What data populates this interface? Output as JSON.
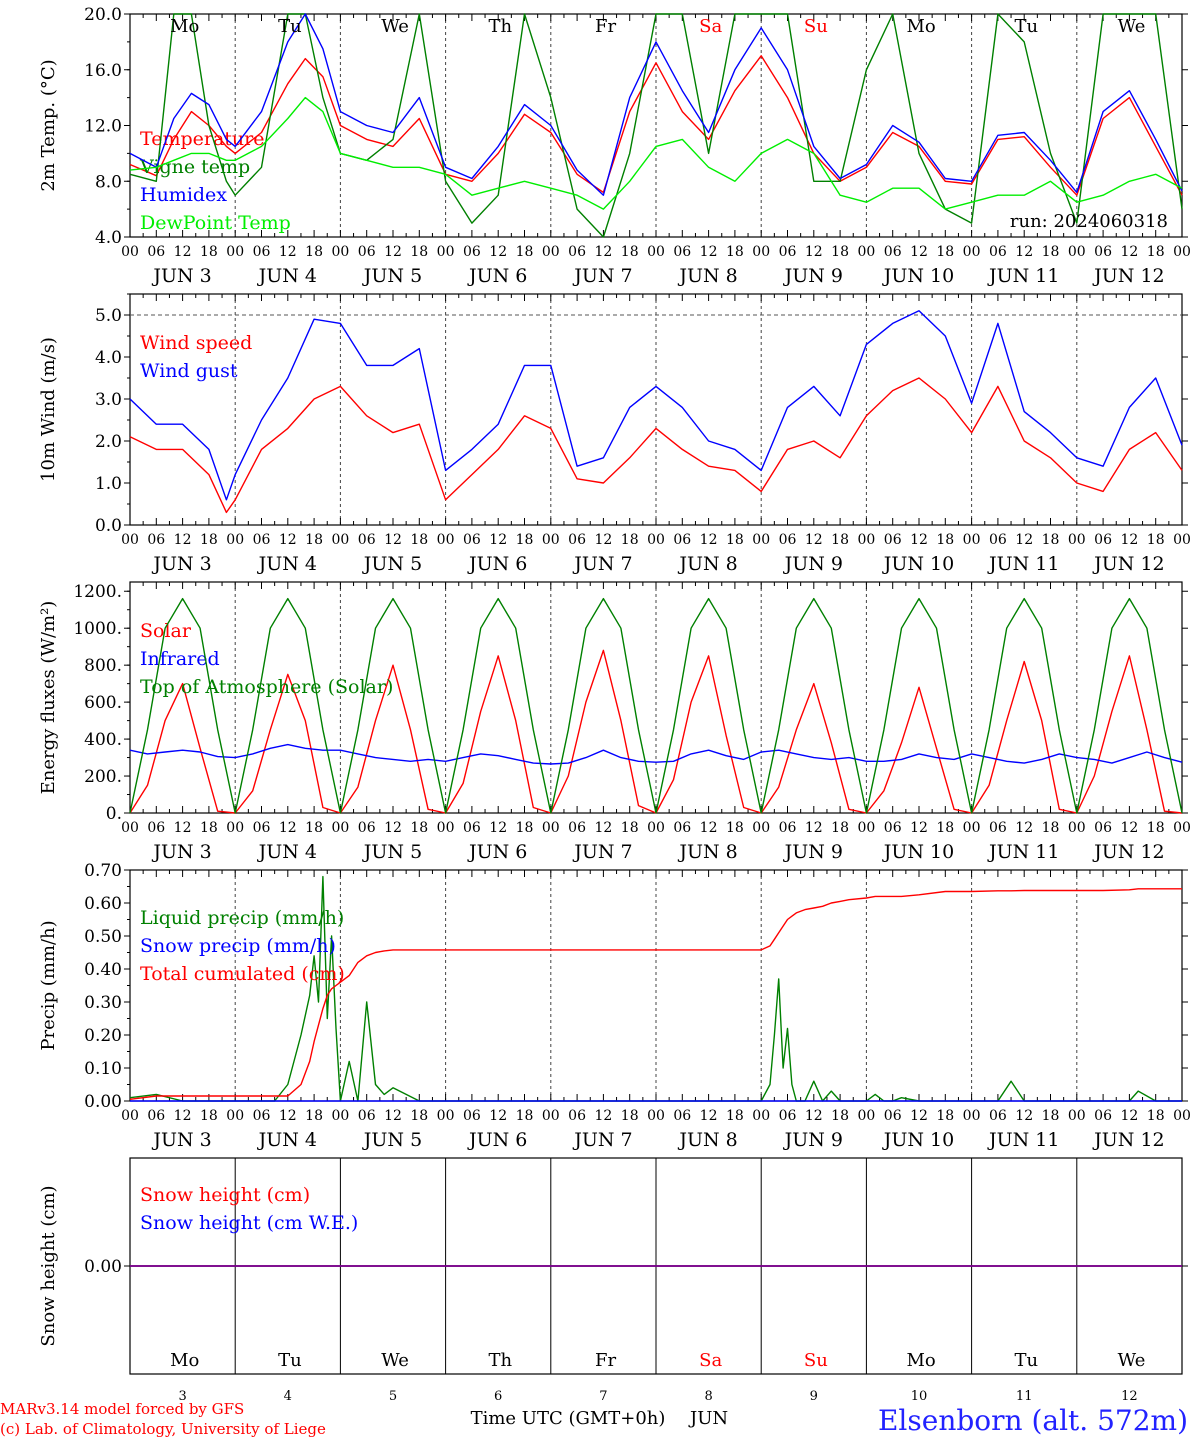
{
  "station": "Elsenborn (alt. 572m)",
  "credits": [
    "MARv3.14 model forced by GFS",
    "(c) Lab. of Climatology, University of Liege"
  ],
  "run_label": "run: 2024060318",
  "time_axis_label": "Time UTC (GMT+0h)",
  "month_label": "JUN",
  "days": [
    {
      "date": "JUN  3",
      "dow": "Mo",
      "num": "3",
      "weekend": false
    },
    {
      "date": "JUN  4",
      "dow": "Tu",
      "num": "4",
      "weekend": false
    },
    {
      "date": "JUN  5",
      "dow": "We",
      "num": "5",
      "weekend": false
    },
    {
      "date": "JUN  6",
      "dow": "Th",
      "num": "6",
      "weekend": false
    },
    {
      "date": "JUN  7",
      "dow": "Fr",
      "num": "7",
      "weekend": false
    },
    {
      "date": "JUN  8",
      "dow": "Sa",
      "num": "8",
      "weekend": true
    },
    {
      "date": "JUN  9",
      "dow": "Su",
      "num": "9",
      "weekend": true
    },
    {
      "date": "JUN 10",
      "dow": "Mo",
      "num": "10",
      "weekend": false
    },
    {
      "date": "JUN 11",
      "dow": "Tu",
      "num": "11",
      "weekend": false
    },
    {
      "date": "JUN 12",
      "dow": "We",
      "num": "12",
      "weekend": false
    }
  ],
  "hour_ticks": [
    "00",
    "06",
    "12",
    "18"
  ],
  "colors": {
    "red": "#ff0000",
    "green": "#008000",
    "blue": "#0000ff",
    "light_green": "#00ee00",
    "purple": "#800080",
    "station_blue": "#2222ff"
  },
  "chart_data": [
    {
      "type": "line",
      "ylabel": "2m Temp. (°C)",
      "ylim": [
        4.0,
        20.0
      ],
      "yticks": [
        "4.0",
        "8.0",
        "12.0",
        "16.0",
        "20.0"
      ],
      "x_hours": [
        0,
        6,
        10,
        14,
        18,
        22,
        24,
        30,
        36,
        40,
        44,
        48,
        54,
        60,
        66,
        72,
        78,
        84,
        90,
        96,
        102,
        108,
        114,
        120,
        126,
        132,
        138,
        144,
        150,
        156,
        162,
        168,
        174,
        180,
        186,
        192,
        198,
        204,
        210,
        216,
        222,
        228,
        234,
        240
      ],
      "series": [
        {
          "name": "Temperature",
          "color": "red",
          "values": [
            9.2,
            8.4,
            11.0,
            13.0,
            12.0,
            10.5,
            10.0,
            11.5,
            15.0,
            16.8,
            15.5,
            12.0,
            11.0,
            10.5,
            12.5,
            8.5,
            8.0,
            10.0,
            12.8,
            11.5,
            8.5,
            7.2,
            13.0,
            16.5,
            13.0,
            11.0,
            14.5,
            17.0,
            14.0,
            10.0,
            8.0,
            9.0,
            11.5,
            10.5,
            8.0,
            7.8,
            11.0,
            11.2,
            9.0,
            7.0,
            12.5,
            14.0,
            10.5,
            7.0
          ]
        },
        {
          "name": "Vigne temp",
          "color": "green",
          "values": [
            8.5,
            8.0,
            20.0,
            20.0,
            12.0,
            8.0,
            7.0,
            9.0,
            20.0,
            20.0,
            14.0,
            10.0,
            9.5,
            11.0,
            20.0,
            8.0,
            5.0,
            7.0,
            20.0,
            14.0,
            6.0,
            4.0,
            10.0,
            20.0,
            20.0,
            10.0,
            20.0,
            20.0,
            20.0,
            8.0,
            8.0,
            16.0,
            20.0,
            10.0,
            6.0,
            5.0,
            20.0,
            18.0,
            10.0,
            5.0,
            20.0,
            20.0,
            20.0,
            6.0
          ]
        },
        {
          "name": "Humidex",
          "color": "blue",
          "values": [
            10.0,
            9.0,
            12.5,
            14.3,
            13.5,
            11.0,
            10.5,
            13.0,
            18.0,
            20.0,
            17.5,
            13.0,
            12.0,
            11.5,
            14.0,
            9.0,
            8.2,
            10.5,
            13.5,
            12.0,
            8.8,
            7.0,
            14.0,
            18.0,
            14.5,
            11.5,
            16.0,
            19.0,
            16.0,
            10.5,
            8.2,
            9.2,
            12.0,
            10.8,
            8.2,
            8.0,
            11.3,
            11.5,
            9.5,
            7.2,
            13.0,
            14.5,
            11.0,
            7.3
          ]
        },
        {
          "name": "DewPoint Temp",
          "color": "light_green",
          "values": [
            8.8,
            9.0,
            9.5,
            10.0,
            10.0,
            9.5,
            9.5,
            10.5,
            12.5,
            14.0,
            13.0,
            10.0,
            9.5,
            9.0,
            9.0,
            8.5,
            7.0,
            7.5,
            8.0,
            7.5,
            7.0,
            6.0,
            8.0,
            10.5,
            11.0,
            9.0,
            8.0,
            10.0,
            11.0,
            10.0,
            7.0,
            6.5,
            7.5,
            7.5,
            6.0,
            6.5,
            7.0,
            7.0,
            8.0,
            6.5,
            7.0,
            8.0,
            8.5,
            7.5
          ]
        }
      ]
    },
    {
      "type": "line",
      "ylabel": "10m Wind (m/s)",
      "ylim": [
        0.0,
        5.5
      ],
      "yticks": [
        "0.0",
        "1.0",
        "2.0",
        "3.0",
        "4.0",
        "5.0"
      ],
      "x_hours": [
        0,
        6,
        12,
        18,
        22,
        24,
        30,
        36,
        42,
        48,
        54,
        60,
        66,
        72,
        78,
        84,
        90,
        96,
        102,
        108,
        114,
        120,
        126,
        132,
        138,
        144,
        150,
        156,
        162,
        168,
        174,
        180,
        186,
        192,
        198,
        204,
        210,
        216,
        222,
        228,
        234,
        240
      ],
      "series": [
        {
          "name": "Wind speed",
          "color": "red",
          "values": [
            2.1,
            1.8,
            1.8,
            1.2,
            0.3,
            0.6,
            1.8,
            2.3,
            3.0,
            3.3,
            2.6,
            2.2,
            2.4,
            0.6,
            1.2,
            1.8,
            2.6,
            2.3,
            1.1,
            1.0,
            1.6,
            2.3,
            1.8,
            1.4,
            1.3,
            0.8,
            1.8,
            2.0,
            1.6,
            2.6,
            3.2,
            3.5,
            3.0,
            2.2,
            3.3,
            2.0,
            1.6,
            1.0,
            0.8,
            1.8,
            2.2,
            1.3
          ]
        },
        {
          "name": "Wind gust",
          "color": "blue",
          "values": [
            3.0,
            2.4,
            2.4,
            1.8,
            0.6,
            1.2,
            2.5,
            3.5,
            4.9,
            4.8,
            3.8,
            3.8,
            4.2,
            1.3,
            1.8,
            2.4,
            3.8,
            3.8,
            1.4,
            1.6,
            2.8,
            3.3,
            2.8,
            2.0,
            1.8,
            1.3,
            2.8,
            3.3,
            2.6,
            4.3,
            4.8,
            5.1,
            4.5,
            2.9,
            4.8,
            2.7,
            2.2,
            1.6,
            1.4,
            2.8,
            3.5,
            1.9
          ]
        }
      ]
    },
    {
      "type": "line",
      "ylabel": "Energy fluxes (W/m²)",
      "ylim": [
        0,
        1250
      ],
      "yticks": [
        "0.",
        "200.",
        "400.",
        "600.",
        "800.",
        "1000.",
        "1200."
      ],
      "x_hours": [
        0,
        4,
        8,
        12,
        16,
        20,
        24,
        28,
        32,
        36,
        40,
        44,
        48,
        52,
        56,
        60,
        64,
        68,
        72,
        76,
        80,
        84,
        88,
        92,
        96,
        100,
        104,
        108,
        112,
        116,
        120,
        124,
        128,
        132,
        136,
        140,
        144,
        148,
        152,
        156,
        160,
        164,
        168,
        172,
        176,
        180,
        184,
        188,
        192,
        196,
        200,
        204,
        208,
        212,
        216,
        220,
        224,
        228,
        232,
        236,
        240
      ],
      "series": [
        {
          "name": "Solar",
          "color": "red",
          "values": [
            0,
            150,
            500,
            700,
            350,
            10,
            0,
            120,
            450,
            750,
            500,
            30,
            0,
            140,
            500,
            800,
            450,
            20,
            0,
            160,
            550,
            850,
            500,
            30,
            0,
            200,
            600,
            880,
            500,
            40,
            0,
            180,
            600,
            850,
            420,
            30,
            0,
            140,
            450,
            700,
            380,
            20,
            0,
            120,
            380,
            680,
            350,
            20,
            0,
            150,
            500,
            820,
            500,
            20,
            0,
            200,
            550,
            850,
            450,
            10,
            0
          ]
        },
        {
          "name": "Infrared",
          "color": "blue",
          "values": [
            340,
            320,
            330,
            340,
            330,
            305,
            300,
            320,
            350,
            370,
            350,
            340,
            340,
            320,
            300,
            290,
            280,
            290,
            280,
            300,
            320,
            310,
            290,
            270,
            265,
            270,
            300,
            340,
            300,
            280,
            275,
            280,
            320,
            340,
            310,
            290,
            330,
            340,
            320,
            300,
            290,
            300,
            280,
            280,
            290,
            320,
            300,
            290,
            320,
            300,
            280,
            270,
            290,
            320,
            300,
            290,
            270,
            300,
            330,
            300,
            275
          ]
        },
        {
          "name": "Top of Atmosphere (Solar)",
          "color": "green",
          "values": [
            0,
            450,
            1000,
            1160,
            1000,
            450,
            0,
            450,
            1000,
            1160,
            1000,
            450,
            0,
            450,
            1000,
            1160,
            1000,
            450,
            0,
            450,
            1000,
            1160,
            1000,
            450,
            0,
            450,
            1000,
            1160,
            1000,
            450,
            0,
            450,
            1000,
            1160,
            1000,
            450,
            0,
            450,
            1000,
            1160,
            1000,
            450,
            0,
            450,
            1000,
            1160,
            1000,
            450,
            0,
            450,
            1000,
            1160,
            1000,
            450,
            0,
            450,
            1000,
            1160,
            1000,
            450,
            0
          ]
        }
      ]
    },
    {
      "type": "line",
      "ylabel": "Precip (mm/h)",
      "ylim": [
        0.0,
        0.7
      ],
      "yticks": [
        "0.00",
        "0.10",
        "0.20",
        "0.30",
        "0.40",
        "0.50",
        "0.60",
        "0.70"
      ],
      "x_hours": [
        0,
        6,
        12,
        18,
        24,
        30,
        33,
        36,
        39,
        41,
        42,
        43,
        44,
        45,
        46,
        47,
        48,
        50,
        52,
        54,
        56,
        58,
        60,
        66,
        72,
        96,
        120,
        144,
        146,
        147,
        148,
        149,
        150,
        151,
        152,
        154,
        156,
        158,
        160,
        162,
        164,
        168,
        170,
        172,
        174,
        176,
        180,
        186,
        192,
        198,
        201,
        204,
        210,
        216,
        222,
        228,
        230,
        234,
        240
      ],
      "series": [
        {
          "name": "Liquid precip (mm/h)",
          "color": "green",
          "values": [
            0.01,
            0.02,
            0.0,
            0.0,
            0.0,
            0.0,
            0.0,
            0.05,
            0.2,
            0.32,
            0.44,
            0.3,
            0.68,
            0.25,
            0.5,
            0.22,
            0.0,
            0.12,
            0.0,
            0.3,
            0.05,
            0.02,
            0.04,
            0.0,
            0.0,
            0.0,
            0.0,
            0.0,
            0.05,
            0.2,
            0.37,
            0.1,
            0.22,
            0.05,
            0.0,
            0.0,
            0.06,
            0.0,
            0.03,
            0.0,
            0.0,
            0.0,
            0.02,
            0.0,
            0.0,
            0.01,
            0.0,
            0.0,
            0.0,
            0.0,
            0.06,
            0.0,
            0.0,
            0.0,
            0.0,
            0.0,
            0.03,
            0.0,
            0.0
          ]
        },
        {
          "name": "Snow precip (mm/h)",
          "color": "blue",
          "values": [
            0.0,
            0.0,
            0.0,
            0.0,
            0.0,
            0.0,
            0.0,
            0.0,
            0.0,
            0.0,
            0.0,
            0.0,
            0.0,
            0.0,
            0.0,
            0.0,
            0.0,
            0.0,
            0.0,
            0.0,
            0.0,
            0.0,
            0.0,
            0.0,
            0.0,
            0.0,
            0.0,
            0.0,
            0.0,
            0.0,
            0.0,
            0.0,
            0.0,
            0.0,
            0.0,
            0.0,
            0.0,
            0.0,
            0.0,
            0.0,
            0.0,
            0.0,
            0.0,
            0.0,
            0.0,
            0.0,
            0.0,
            0.0,
            0.0,
            0.0,
            0.0,
            0.0,
            0.0,
            0.0,
            0.0,
            0.0,
            0.0,
            0.0,
            0.0
          ]
        },
        {
          "name": "Total cumulated (cm)",
          "color": "red",
          "values": [
            0.005,
            0.015,
            0.015,
            0.015,
            0.015,
            0.015,
            0.015,
            0.015,
            0.05,
            0.12,
            0.18,
            0.23,
            0.28,
            0.32,
            0.34,
            0.35,
            0.36,
            0.38,
            0.42,
            0.44,
            0.45,
            0.455,
            0.458,
            0.458,
            0.458,
            0.458,
            0.458,
            0.458,
            0.47,
            0.49,
            0.51,
            0.53,
            0.55,
            0.56,
            0.57,
            0.58,
            0.585,
            0.59,
            0.6,
            0.605,
            0.61,
            0.615,
            0.62,
            0.62,
            0.62,
            0.62,
            0.625,
            0.635,
            0.635,
            0.637,
            0.637,
            0.638,
            0.638,
            0.638,
            0.638,
            0.64,
            0.643,
            0.643,
            0.643
          ]
        }
      ]
    },
    {
      "type": "line",
      "ylabel": "Snow height (cm)",
      "ylim": [
        -1.0,
        1.0
      ],
      "yticks": [
        "0.00"
      ],
      "x_hours": [
        0,
        240
      ],
      "series": [
        {
          "name": "Snow height (cm)",
          "color": "red",
          "values": [
            0.0,
            0.0
          ]
        },
        {
          "name": "Snow height (cm W.E.)",
          "color": "blue",
          "values": [
            0.0,
            0.0
          ]
        }
      ]
    }
  ]
}
